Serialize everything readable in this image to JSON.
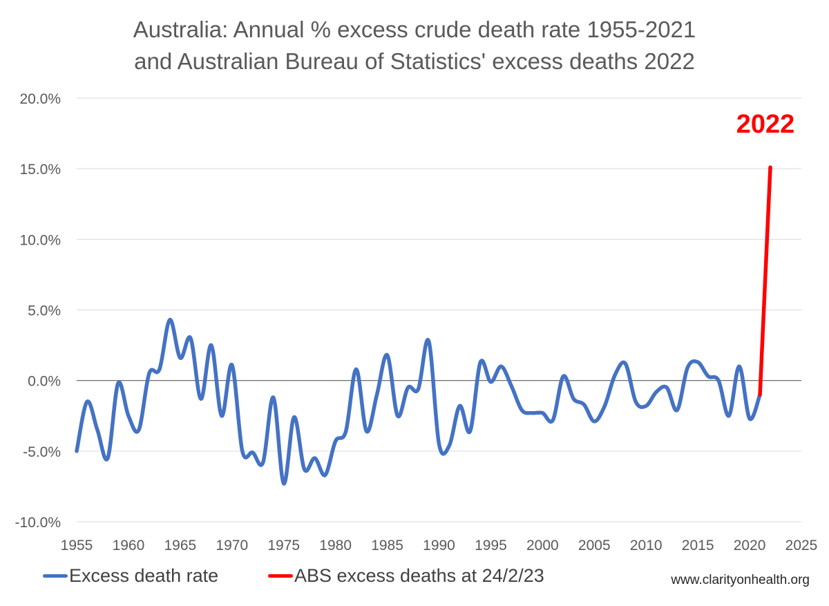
{
  "title_line1": "Australia: Annual % excess crude death rate 1955-2021",
  "title_line2": "and Australian Bureau of Statistics' excess deaths 2022",
  "annotation": "2022",
  "source": "www.clarityonhealth.org",
  "colors": {
    "series1": "#4472C4",
    "series2": "#FF0000",
    "grid": "#D9D9D9",
    "zero_axis": "#595959"
  },
  "chart_data": {
    "type": "line",
    "title": "Australia: Annual % excess crude death rate 1955-2021 and Australian Bureau of Statistics' excess deaths 2022",
    "xlabel": "",
    "ylabel": "",
    "xlim": [
      1955,
      2025
    ],
    "ylim": [
      -10,
      20
    ],
    "x_ticks": [
      "1955",
      "1960",
      "1965",
      "1970",
      "1975",
      "1980",
      "1985",
      "1990",
      "1995",
      "2000",
      "2005",
      "2010",
      "2015",
      "2020",
      "2025"
    ],
    "y_ticks": [
      "-10.0%",
      "-5.0%",
      "0.0%",
      "5.0%",
      "10.0%",
      "15.0%",
      "20.0%"
    ],
    "grid": true,
    "legend_position": "bottom",
    "series": [
      {
        "name": "Excess death rate",
        "x": [
          1955,
          1956,
          1957,
          1958,
          1959,
          1960,
          1961,
          1962,
          1963,
          1964,
          1965,
          1966,
          1967,
          1968,
          1969,
          1970,
          1971,
          1972,
          1973,
          1974,
          1975,
          1976,
          1977,
          1978,
          1979,
          1980,
          1981,
          1982,
          1983,
          1984,
          1985,
          1986,
          1987,
          1988,
          1989,
          1990,
          1991,
          1992,
          1993,
          1994,
          1995,
          1996,
          1997,
          1998,
          1999,
          2000,
          2001,
          2002,
          2003,
          2004,
          2005,
          2006,
          2007,
          2008,
          2009,
          2010,
          2011,
          2012,
          2013,
          2014,
          2015,
          2016,
          2017,
          2018,
          2019,
          2020,
          2021
        ],
        "values": [
          -5.0,
          -1.5,
          -3.5,
          -5.5,
          -0.2,
          -2.5,
          -3.5,
          0.5,
          0.8,
          4.3,
          1.6,
          3.0,
          -1.3,
          2.5,
          -2.5,
          1.1,
          -5.0,
          -5.1,
          -5.8,
          -1.2,
          -7.3,
          -2.6,
          -6.3,
          -5.5,
          -6.7,
          -4.3,
          -3.6,
          0.8,
          -3.6,
          -1.0,
          1.8,
          -2.5,
          -0.5,
          -0.6,
          2.8,
          -4.5,
          -4.6,
          -1.8,
          -3.6,
          1.3,
          -0.1,
          1.0,
          -0.4,
          -2.1,
          -2.3,
          -2.3,
          -2.8,
          0.3,
          -1.3,
          -1.7,
          -2.9,
          -1.8,
          0.4,
          1.2,
          -1.5,
          -1.8,
          -0.8,
          -0.5,
          -2.1,
          0.9,
          1.3,
          0.3,
          0.0,
          -2.5,
          1.0,
          -2.7,
          -1.0
        ]
      },
      {
        "name": "ABS excess deaths at 24/2/23",
        "x": [
          2021,
          2022
        ],
        "values": [
          -1.0,
          15.1
        ]
      }
    ]
  }
}
